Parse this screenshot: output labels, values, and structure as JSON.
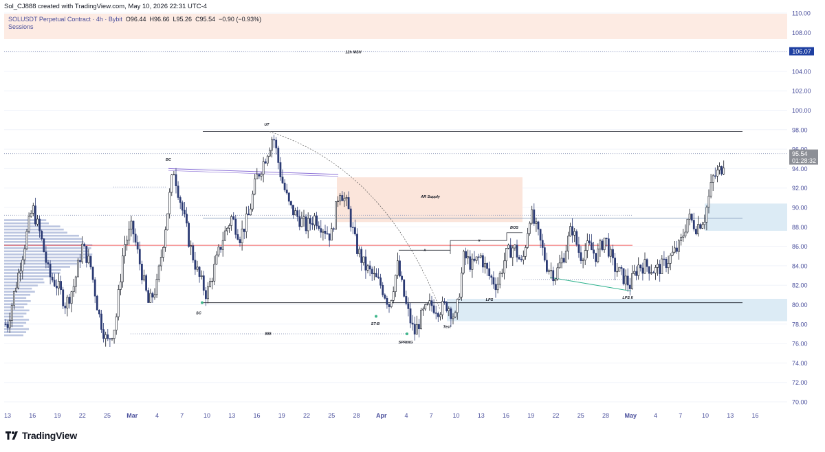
{
  "header": {
    "credit": "Sol_CJ888 created with TradingView.com, May 10, 2026 22:31 UTC-4",
    "symbol": "SOLUSDT Perpetual Contract · 4h · Bybit",
    "ohlc": {
      "o": "O96.44",
      "h": "H96.66",
      "l": "L95.26",
      "c": "C95.54",
      "chg": "−0.90 (−0.93%)"
    },
    "indicator": "Sessions"
  },
  "footer": {
    "logo_text": "TradingView",
    "logo_icon": "tradingview-logo-icon"
  },
  "colors": {
    "up": "#131722",
    "down": "#2b3a73",
    "grid": "#f0f3fa",
    "axis_text": "#4a4f9c",
    "price_badge": "#1e3fa1",
    "sessions_bg": "#fdebe3",
    "supply": "#fbe5db",
    "demand": "#dcebf5"
  },
  "price_axis": {
    "ticks": [
      "70.00",
      "72.00",
      "74.00",
      "76.00",
      "78.00",
      "80.00",
      "82.00",
      "84.00",
      "86.00",
      "88.00",
      "90.00",
      "92.00",
      "94.00",
      "96.00",
      "98.00",
      "100.00",
      "102.00",
      "104.00",
      "106.00",
      "108.00",
      "110.00"
    ],
    "msh_label": "106.07",
    "last_price": "95.54",
    "countdown": "01:28:32"
  },
  "time_axis": {
    "ticks": [
      "13",
      "16",
      "19",
      "22",
      "25",
      "Mar",
      "4",
      "7",
      "10",
      "13",
      "16",
      "19",
      "22",
      "25",
      "28",
      "Apr",
      "4",
      "7",
      "10",
      "13",
      "16",
      "19",
      "22",
      "25",
      "28",
      "May",
      "4",
      "7",
      "10",
      "13",
      "16"
    ],
    "bold": [
      "Mar",
      "Apr",
      "May"
    ]
  },
  "annotations": {
    "msh": "12h MSH",
    "ut": "UT",
    "bc": "BC",
    "sc": "SC",
    "st_b": "ST-B",
    "spring": "SPRING",
    "test": "Test",
    "lps": "LPS",
    "lps2": "LPS II",
    "bos": "BOS",
    "ar_supply": "AR Supply",
    "sss": "$$$",
    "x1": "x",
    "x2": "x"
  },
  "chart_data": {
    "type": "candlestick",
    "timeframe": "4h",
    "y_range": [
      70,
      110
    ],
    "x_range": [
      "2026-02-13",
      "2026-05-16"
    ],
    "key_levels": [
      {
        "label": "UT",
        "price": 97.8
      },
      {
        "label": "BC",
        "price": 94.0
      },
      {
        "label": "AR Supply",
        "price_low": 88.5,
        "price_high": 93.1
      },
      {
        "label": "SC",
        "price": 80.2
      },
      {
        "label": "SPRING",
        "price": 77.0
      },
      {
        "label": "12h MSH",
        "price": 106.07
      },
      {
        "label": "demand",
        "price_low": 78.3,
        "price_high": 80.6
      },
      {
        "label": "demand",
        "price_low": 87.6,
        "price_high": 90.4
      }
    ],
    "last": {
      "open": 96.44,
      "high": 96.66,
      "low": 95.26,
      "close": 95.54
    },
    "path_points": [
      [
        "2026-02-13",
        78
      ],
      [
        "2026-02-15",
        86
      ],
      [
        "2026-02-16",
        90
      ],
      [
        "2026-02-17",
        87
      ],
      [
        "2026-02-18",
        83
      ],
      [
        "2026-02-19",
        82
      ],
      [
        "2026-02-20",
        80
      ],
      [
        "2026-02-21",
        82
      ],
      [
        "2026-02-22",
        86
      ],
      [
        "2026-02-23",
        84
      ],
      [
        "2026-02-24",
        79
      ],
      [
        "2026-02-25",
        76
      ],
      [
        "2026-02-26",
        78
      ],
      [
        "2026-02-27",
        86
      ],
      [
        "2026-02-28",
        88
      ],
      [
        "2026-03-01",
        84
      ],
      [
        "2026-03-02",
        80
      ],
      [
        "2026-03-03",
        82
      ],
      [
        "2026-03-04",
        88
      ],
      [
        "2026-03-05",
        94
      ],
      [
        "2026-03-06",
        90
      ],
      [
        "2026-03-07",
        86
      ],
      [
        "2026-03-08",
        83
      ],
      [
        "2026-03-09",
        81
      ],
      [
        "2026-03-10",
        84
      ],
      [
        "2026-03-11",
        87
      ],
      [
        "2026-03-12",
        89
      ],
      [
        "2026-03-13",
        87
      ],
      [
        "2026-03-14",
        89
      ],
      [
        "2026-03-15",
        93
      ],
      [
        "2026-03-16",
        95
      ],
      [
        "2026-03-17",
        97.5
      ],
      [
        "2026-03-18",
        93
      ],
      [
        "2026-03-19",
        90
      ],
      [
        "2026-03-20",
        89
      ],
      [
        "2026-03-21",
        88
      ],
      [
        "2026-03-22",
        89
      ],
      [
        "2026-03-23",
        88
      ],
      [
        "2026-03-24",
        87
      ],
      [
        "2026-03-25",
        92
      ],
      [
        "2026-03-26",
        90
      ],
      [
        "2026-03-27",
        86
      ],
      [
        "2026-03-28",
        84
      ],
      [
        "2026-03-29",
        83
      ],
      [
        "2026-03-30",
        82
      ],
      [
        "2026-03-31",
        80
      ],
      [
        "2026-04-01",
        84
      ],
      [
        "2026-04-02",
        80
      ],
      [
        "2026-04-03",
        77
      ],
      [
        "2026-04-04",
        79
      ],
      [
        "2026-04-05",
        80
      ],
      [
        "2026-04-06",
        79.5
      ],
      [
        "2026-04-07",
        80
      ],
      [
        "2026-04-08",
        78.5
      ],
      [
        "2026-04-09",
        85
      ],
      [
        "2026-04-10",
        84
      ],
      [
        "2026-04-11",
        85
      ],
      [
        "2026-04-12",
        83
      ],
      [
        "2026-04-13",
        82
      ],
      [
        "2026-04-14",
        85
      ],
      [
        "2026-04-15",
        86
      ],
      [
        "2026-04-16",
        84
      ],
      [
        "2026-04-17",
        89.5
      ],
      [
        "2026-04-18",
        87
      ],
      [
        "2026-04-19",
        84
      ],
      [
        "2026-04-20",
        83
      ],
      [
        "2026-04-21",
        85
      ],
      [
        "2026-04-22",
        88
      ],
      [
        "2026-04-23",
        85
      ],
      [
        "2026-04-24",
        86
      ],
      [
        "2026-04-25",
        85
      ],
      [
        "2026-04-26",
        87
      ],
      [
        "2026-04-27",
        84
      ],
      [
        "2026-04-28",
        83
      ],
      [
        "2026-04-29",
        82
      ],
      [
        "2026-04-30",
        84
      ],
      [
        "2026-05-01",
        84
      ],
      [
        "2026-05-02",
        83.5
      ],
      [
        "2026-05-03",
        84
      ],
      [
        "2026-05-04",
        85
      ],
      [
        "2026-05-05",
        86
      ],
      [
        "2026-05-06",
        89
      ],
      [
        "2026-05-07",
        88
      ],
      [
        "2026-05-08",
        89
      ],
      [
        "2026-05-09",
        93
      ],
      [
        "2026-05-10",
        94
      ],
      [
        "2026-05-11",
        96.5
      ]
    ]
  }
}
